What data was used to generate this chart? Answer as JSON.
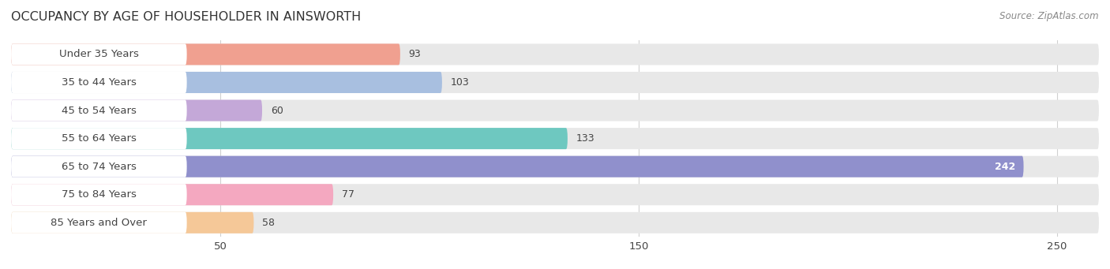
{
  "title": "OCCUPANCY BY AGE OF HOUSEHOLDER IN AINSWORTH",
  "source": "Source: ZipAtlas.com",
  "categories": [
    "Under 35 Years",
    "35 to 44 Years",
    "45 to 54 Years",
    "55 to 64 Years",
    "65 to 74 Years",
    "75 to 84 Years",
    "85 Years and Over"
  ],
  "values": [
    93,
    103,
    60,
    133,
    242,
    77,
    58
  ],
  "bar_colors": [
    "#f0a090",
    "#a8bfe0",
    "#c4a8d8",
    "#6ec8c0",
    "#9090cc",
    "#f4a8c0",
    "#f5c898"
  ],
  "bar_bg_color": "#e8e8e8",
  "label_bg_color": "#ffffff",
  "xlim_max": 260,
  "xticks": [
    50,
    150,
    250
  ],
  "title_fontsize": 11.5,
  "label_fontsize": 9.5,
  "value_fontsize": 9,
  "source_fontsize": 8.5,
  "background_color": "#ffffff",
  "label_color": "#444444",
  "title_color": "#333333",
  "source_color": "#888888",
  "grid_color": "#d0d0d0"
}
